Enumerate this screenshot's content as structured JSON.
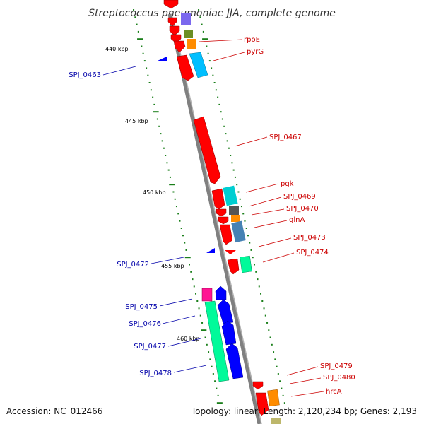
{
  "title": "Streptococcus pneumoniae JJA, complete genome",
  "footer": {
    "accession": "Accession: NC_012466",
    "summary": "Topology: linear; Length: 2,120,234 bp; Genes: 2,193"
  },
  "colors": {
    "backbone": "#808080",
    "tick": "#1a7f1a",
    "forward_label": "#cc0000",
    "reverse_label": "#0000aa"
  },
  "kbp_markers": [
    "440 kbp",
    "445 kbp",
    "450 kbp",
    "455 kbp",
    "460 kbp"
  ],
  "forward_labels": [
    "rpoE",
    "pyrG",
    "SPJ_0467",
    "pgk",
    "SPJ_0469",
    "SPJ_0470",
    "glnA",
    "SPJ_0473",
    "SPJ_0474",
    "SPJ_0479",
    "SPJ_0480",
    "hrcA"
  ],
  "reverse_labels": [
    "SPJ_0463",
    "SPJ_0472",
    "SPJ_0475",
    "SPJ_0476",
    "SPJ_0477",
    "SPJ_0478"
  ]
}
